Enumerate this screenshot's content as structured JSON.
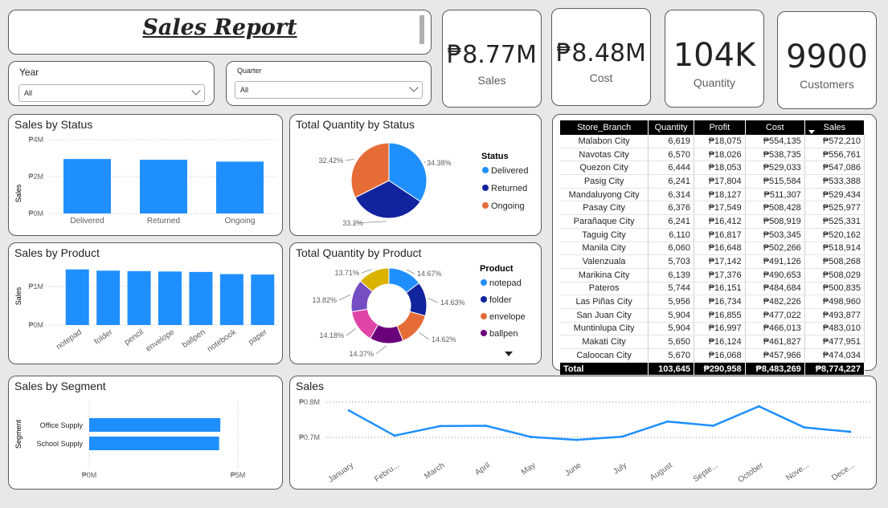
{
  "header": {
    "title": "Sales Report"
  },
  "slicers": {
    "year": {
      "label": "Year",
      "value": "All"
    },
    "quarter": {
      "label": "Quarter",
      "value": "All"
    }
  },
  "kpis": [
    {
      "value": "₱8.77M",
      "label": "Sales"
    },
    {
      "value": "₱8.48M",
      "label": "Cost"
    },
    {
      "value": "104K",
      "label": "Quantity"
    },
    {
      "value": "9900",
      "label": "Customers"
    }
  ],
  "colors": {
    "bar": "#1f8fff",
    "delivered": "#1f8fff",
    "returned": "#12239e",
    "ongoing": "#e66c37",
    "purple": "#6b007b",
    "pink": "#e044a7",
    "violet": "#744ec2",
    "gold": "#d9b300"
  },
  "status_bar": {
    "title": "Sales by Status",
    "ylabel": "Sales",
    "ticks": [
      "₱4M",
      "₱2M",
      "₱0M"
    ],
    "chart_data": {
      "type": "bar",
      "categories": [
        "Delivered",
        "Returned",
        "Ongoing"
      ],
      "values": [
        2.95,
        2.91,
        2.81
      ],
      "ylim": [
        0,
        4
      ],
      "ylabel": "Sales"
    }
  },
  "status_pie": {
    "title": "Total Quantity by Status",
    "legend_title": "Status",
    "chart_data": {
      "type": "pie",
      "categories": [
        "Delivered",
        "Returned",
        "Ongoing"
      ],
      "values": [
        34.38,
        33.2,
        32.42
      ]
    },
    "labels": [
      "34.38%",
      "33.2%",
      "32.42%"
    ]
  },
  "product_bar": {
    "title": "Sales by Product",
    "ylabel": "Sales",
    "ticks": [
      "₱1M",
      "₱0M"
    ],
    "chart_data": {
      "type": "bar",
      "categories": [
        "notepad",
        "folder",
        "pencil",
        "envelope",
        "ballpen",
        "notebook",
        "paper"
      ],
      "values": [
        1.3,
        1.27,
        1.26,
        1.25,
        1.24,
        1.19,
        1.18
      ],
      "ylim": [
        0,
        1.5
      ],
      "ylabel": "Sales"
    }
  },
  "product_donut": {
    "title": "Total Quantity by Product",
    "legend_title": "Product",
    "legend_items": [
      "notepad",
      "folder",
      "envelope",
      "ballpen"
    ],
    "chart_data": {
      "type": "pie",
      "categories": [
        "notepad",
        "folder",
        "envelope",
        "ballpen",
        "pencil",
        "notebook",
        "paper"
      ],
      "values": [
        14.67,
        14.63,
        14.62,
        14.37,
        14.18,
        13.82,
        13.71
      ]
    },
    "labels": [
      "14.67%",
      "14.63%",
      "14.62%",
      "14.37%",
      "14.18%",
      "13.82%",
      "13.71%"
    ]
  },
  "segment_bar": {
    "title": "Sales by Segment",
    "ylabel": "Segment",
    "ticks": [
      "₱0M",
      "₱5M"
    ],
    "chart_data": {
      "type": "bar",
      "categories": [
        "Office Supply",
        "School Supply"
      ],
      "values": [
        4.41,
        4.37
      ],
      "xlim": [
        0,
        5
      ]
    }
  },
  "sales_line": {
    "title": "Sales",
    "ticks": [
      "₱0.8M",
      "₱0.7M"
    ],
    "chart_data": {
      "type": "line",
      "categories": [
        "January",
        "Febru...",
        "March",
        "April",
        "May",
        "June",
        "July",
        "August",
        "Septe...",
        "October",
        "Nove...",
        "Dece..."
      ],
      "values": [
        0.776,
        0.705,
        0.732,
        0.733,
        0.701,
        0.693,
        0.702,
        0.745,
        0.733,
        0.788,
        0.728,
        0.716
      ],
      "ylim": [
        0.67,
        0.82
      ]
    }
  },
  "table": {
    "columns": [
      "Store_Branch",
      "Quantity",
      "Profit",
      "Cost",
      "Sales"
    ],
    "rows": [
      [
        "Malabon City",
        "6,619",
        "₱18,075",
        "₱554,135",
        "₱572,210"
      ],
      [
        "Navotas City",
        "6,570",
        "₱18,026",
        "₱538,735",
        "₱556,761"
      ],
      [
        "Quezon City",
        "6,444",
        "₱18,053",
        "₱529,033",
        "₱547,086"
      ],
      [
        "Pasig City",
        "6,241",
        "₱17,804",
        "₱515,584",
        "₱533,388"
      ],
      [
        "Mandaluyong City",
        "6,314",
        "₱18,127",
        "₱511,307",
        "₱529,434"
      ],
      [
        "Pasay City",
        "6,376",
        "₱17,549",
        "₱508,428",
        "₱525,977"
      ],
      [
        "Parañaque City",
        "6,241",
        "₱16,412",
        "₱508,919",
        "₱525,331"
      ],
      [
        "Taguig City",
        "6,110",
        "₱16,817",
        "₱503,345",
        "₱520,162"
      ],
      [
        "Manila City",
        "6,060",
        "₱16,648",
        "₱502,266",
        "₱518,914"
      ],
      [
        "Valenzuala",
        "5,703",
        "₱17,142",
        "₱491,126",
        "₱508,268"
      ],
      [
        "Marikina City",
        "6,139",
        "₱17,376",
        "₱490,653",
        "₱508,029"
      ],
      [
        "Pateros",
        "5,744",
        "₱16,151",
        "₱484,684",
        "₱500,835"
      ],
      [
        "Las Piñas City",
        "5,956",
        "₱16,734",
        "₱482,226",
        "₱498,960"
      ],
      [
        "San Juan City",
        "5,904",
        "₱16,855",
        "₱477,022",
        "₱493,877"
      ],
      [
        "Muntinlupa City",
        "5,904",
        "₱16,997",
        "₱466,013",
        "₱483,010"
      ],
      [
        "Makati City",
        "5,650",
        "₱16,124",
        "₱461,827",
        "₱477,951"
      ],
      [
        "Caloocan City",
        "5,670",
        "₱16,068",
        "₱457,966",
        "₱474,034"
      ]
    ],
    "total": [
      "Total",
      "103,645",
      "₱290,958",
      "₱8,483,269",
      "₱8,774,227"
    ]
  }
}
